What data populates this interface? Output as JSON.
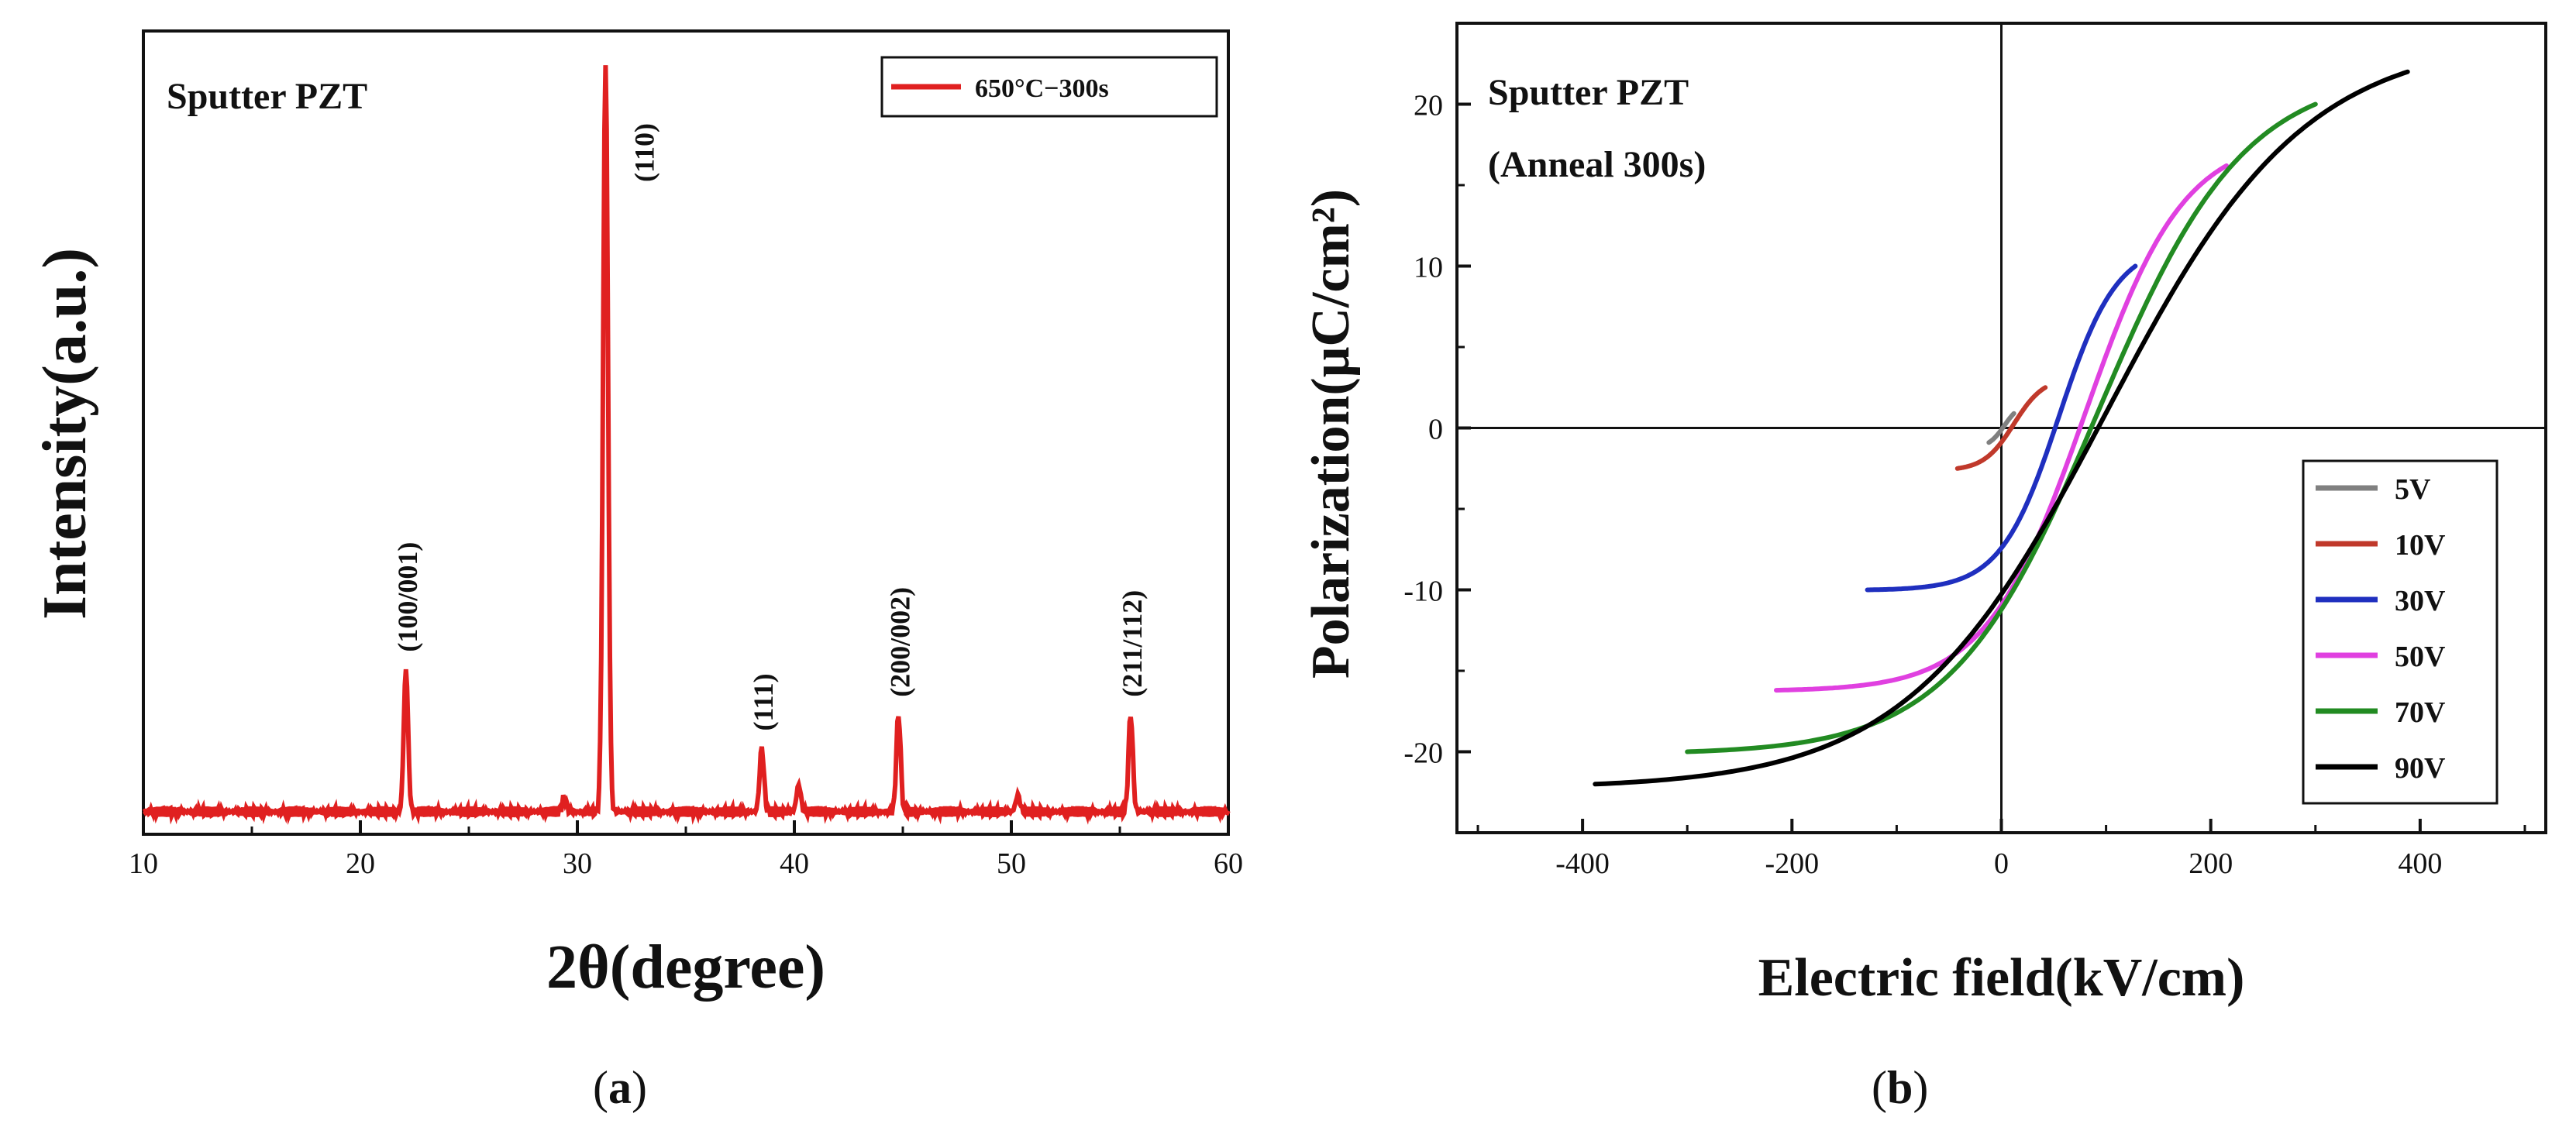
{
  "chart_data": [
    {
      "type": "line",
      "panel": "a",
      "annotation": "Sputter PZT",
      "xlabel": "2θ(degree)",
      "ylabel": "Intensity(a.u.)",
      "xlim": [
        10,
        60
      ],
      "xticks": [
        10,
        20,
        30,
        40,
        50,
        60
      ],
      "yticks_labeled": false,
      "legend": {
        "placement": "top-right",
        "entries": [
          "650°C−300s"
        ]
      },
      "series": [
        {
          "name": "650°C−300s",
          "color": "#e02020",
          "baseline": 0.03,
          "peaks": [
            {
              "x": 22.1,
              "height": 0.19,
              "label": "(100/001)"
            },
            {
              "x": 29.4,
              "height": 0.018,
              "label": ""
            },
            {
              "x": 31.3,
              "height": 1.0,
              "label": "(110)"
            },
            {
              "x": 38.5,
              "height": 0.085,
              "label": "(111)"
            },
            {
              "x": 40.2,
              "height": 0.036,
              "label": ""
            },
            {
              "x": 44.8,
              "height": 0.13,
              "label": "(200/002)"
            },
            {
              "x": 50.3,
              "height": 0.022,
              "label": ""
            },
            {
              "x": 55.5,
              "height": 0.13,
              "label": "(211/112)"
            }
          ]
        }
      ]
    },
    {
      "type": "line",
      "panel": "b",
      "annotation": [
        "Sputter PZT",
        "(Anneal 300s)"
      ],
      "xlabel": "Electric field(kV/cm)",
      "ylabel": "Polarization(μC/cm²)",
      "xlim": [
        -520,
        520
      ],
      "ylim": [
        -25,
        25
      ],
      "xticks": [
        -400,
        -200,
        0,
        200,
        400
      ],
      "yticks": [
        -20,
        -10,
        0,
        10,
        20
      ],
      "zero_lines": true,
      "legend": {
        "placement": "bottom-right",
        "entries": [
          "5V",
          "10V",
          "30V",
          "50V",
          "70V",
          "90V"
        ]
      },
      "series": [
        {
          "name": "5V",
          "color": "#808080",
          "Emax": 12,
          "Pmax": 0.9,
          "Pr": 0.3,
          "Ec": 3
        },
        {
          "name": "10V",
          "color": "#c0392b",
          "Emax": 42,
          "Pmax": 2.5,
          "Pr": 0.8,
          "Ec": 12
        },
        {
          "name": "30V",
          "color": "#1f2fbf",
          "Emax": 128,
          "Pmax": 10,
          "Pr": 5,
          "Ec": 55
        },
        {
          "name": "50V",
          "color": "#e040e0",
          "Emax": 215,
          "Pmax": 16.2,
          "Pr": 9,
          "Ec": 80
        },
        {
          "name": "70V",
          "color": "#228b22",
          "Emax": 300,
          "Pmax": 20,
          "Pr": 11.5,
          "Ec": 92
        },
        {
          "name": "90V",
          "color": "#000000",
          "Emax": 388,
          "Pmax": 22,
          "Pr": 13.5,
          "Ec": 100
        }
      ]
    }
  ],
  "panel_labels": [
    "a",
    "b"
  ]
}
